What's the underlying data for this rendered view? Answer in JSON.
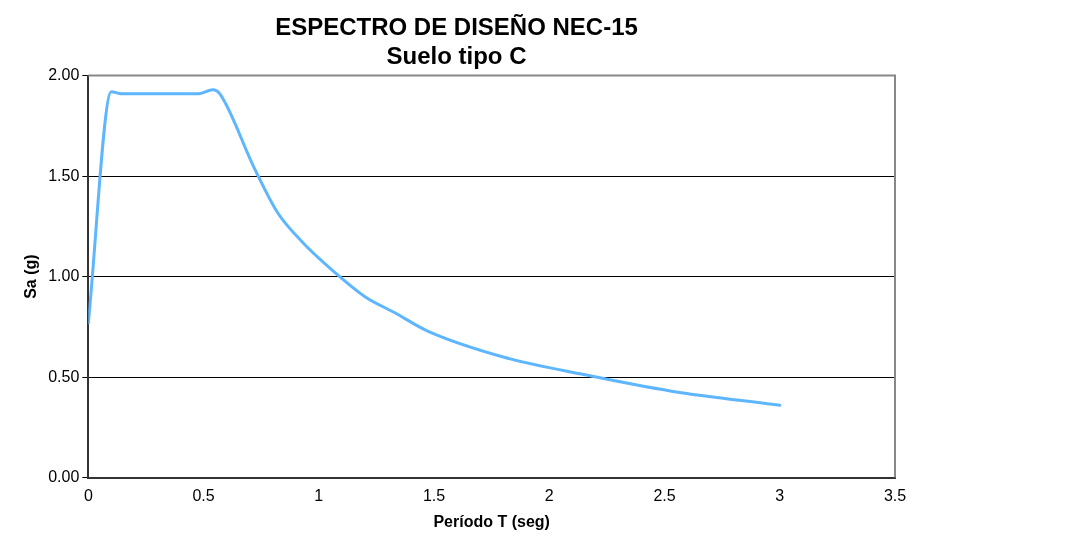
{
  "chart_data": {
    "type": "line",
    "title": [
      "ESPECTRO DE DISEÑO NEC-15",
      "Suelo tipo C"
    ],
    "xlabel": "Período T (seg)",
    "ylabel": "Sa (g)",
    "xlim": [
      0,
      3.5
    ],
    "xticks": [
      0,
      0.5,
      1,
      1.5,
      2,
      2.5,
      3,
      3.5
    ],
    "ylim": [
      0,
      2
    ],
    "yticks": [
      {
        "value": 0,
        "label": "0.00"
      },
      {
        "value": 0.5,
        "label": "0.50"
      },
      {
        "value": 1,
        "label": "1.00"
      },
      {
        "value": 1.5,
        "label": "1.50"
      },
      {
        "value": 2,
        "label": "2.00"
      }
    ],
    "grid": "y",
    "legend": false,
    "marker": "none",
    "line_style": "solid",
    "series": [
      {
        "color": "#5eb6ff",
        "x": [
          0,
          0.1,
          0.14,
          0.48,
          0.54,
          0.57,
          0.72,
          0.82,
          0.93,
          1.07,
          1.2,
          1.33,
          1.47,
          1.8,
          2.16,
          2.53,
          3.0
        ],
        "values": [
          0.77,
          1.92,
          1.91,
          1.91,
          1.93,
          1.91,
          1.54,
          1.32,
          1.17,
          1.02,
          0.9,
          0.82,
          0.73,
          0.6,
          0.51,
          0.43,
          0.36
        ]
      }
    ]
  }
}
